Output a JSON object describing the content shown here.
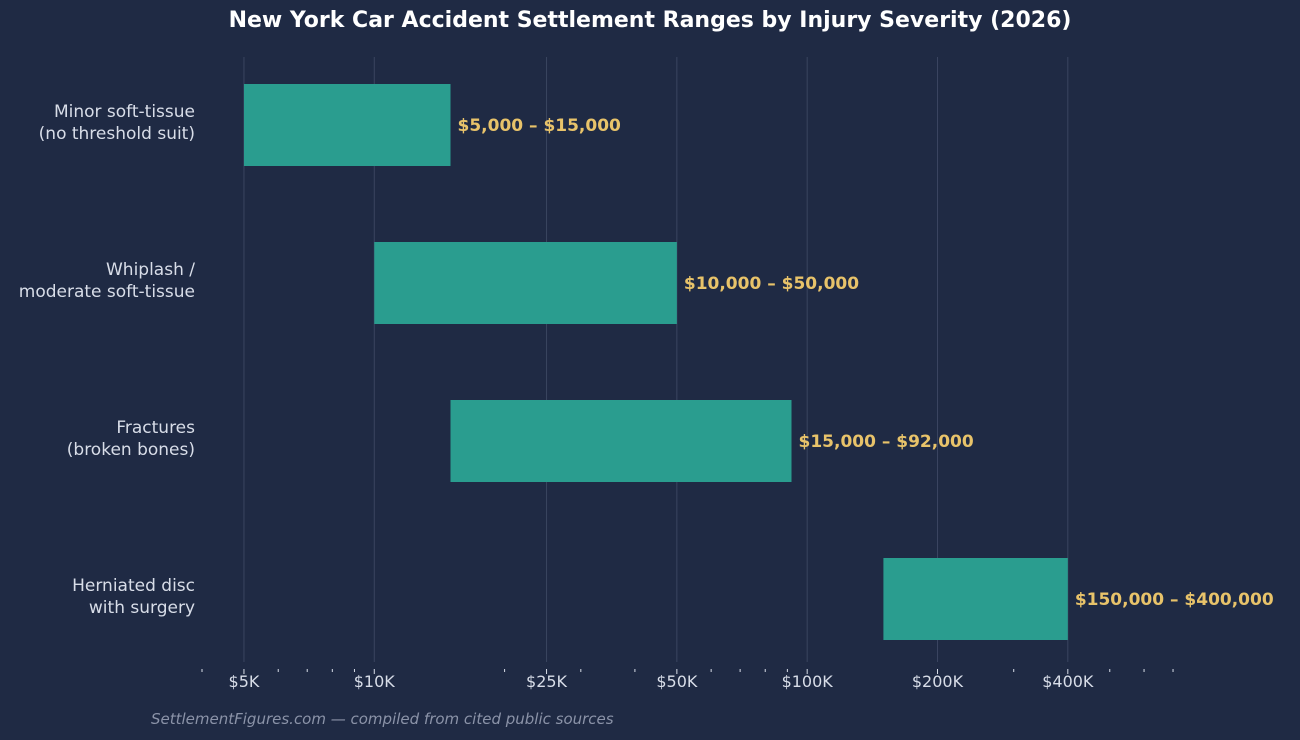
{
  "chart_data": {
    "type": "bar",
    "orientation": "horizontal-range",
    "title": "New York Car Accident Settlement Ranges by Injury Severity (2026)",
    "xlabel": "",
    "ylabel": "",
    "xscale": "log",
    "xlim": [
      4000,
      750000
    ],
    "grid": "vertical major",
    "legend": "none",
    "categories": [
      [
        "Minor soft-tissue",
        "(no threshold suit)"
      ],
      [
        "Whiplash /",
        "moderate soft-tissue"
      ],
      [
        "Fractures",
        "(broken bones)"
      ],
      [
        "Herniated disc",
        "with surgery"
      ]
    ],
    "ranges": [
      {
        "low": 5000,
        "high": 15000,
        "label": "$5,000 – $15,000"
      },
      {
        "low": 10000,
        "high": 50000,
        "label": "$10,000 – $50,000"
      },
      {
        "low": 15000,
        "high": 92000,
        "label": "$15,000 – $92,000"
      },
      {
        "low": 150000,
        "high": 400000,
        "label": "$150,000 – $400,000"
      }
    ],
    "ticks": [
      {
        "value": 5000,
        "label": "$5K"
      },
      {
        "value": 10000,
        "label": "$10K"
      },
      {
        "value": 25000,
        "label": "$25K"
      },
      {
        "value": 50000,
        "label": "$50K"
      },
      {
        "value": 100000,
        "label": "$100K"
      },
      {
        "value": 200000,
        "label": "$200K"
      },
      {
        "value": 400000,
        "label": "$400K"
      }
    ],
    "colors": {
      "background": "#1f2a44",
      "bar": "#2a9d8f",
      "data_label": "#e8c36a",
      "text": "#d8dde8",
      "grid": "#3a4560",
      "footer": "#8b93a8"
    }
  },
  "footer": "SettlementFigures.com — compiled from cited public sources"
}
